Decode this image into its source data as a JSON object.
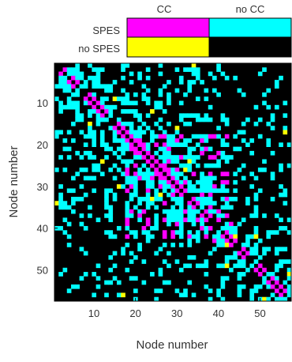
{
  "chart_data": {
    "type": "heatmap",
    "xlabel": "Node number",
    "ylabel": "Node number",
    "n_nodes": 57,
    "xticks": [
      10,
      20,
      30,
      40,
      50
    ],
    "yticks": [
      10,
      20,
      30,
      40,
      50
    ],
    "legend": {
      "position": "top",
      "columns": [
        "CC",
        "no CC"
      ],
      "rows": [
        "SPES",
        "no SPES"
      ],
      "colors": {
        "spes_cc": "#ff00ff",
        "spes_nocc": "#00ffff",
        "nospes_cc": "#ffff00",
        "nospes_nocc": "#000000"
      }
    },
    "colors": {
      "spes_cc": "#ff00ff",
      "spes_nocc": "#00ffff",
      "nospes_cc": "#ffff00",
      "nospes_nocc": "#000000"
    },
    "matrix_pattern": "approximate connectivity: dense cyan band near diagonal, magenta on diagonal and in cluster around nodes 20-40, sparse yellow cells"
  }
}
